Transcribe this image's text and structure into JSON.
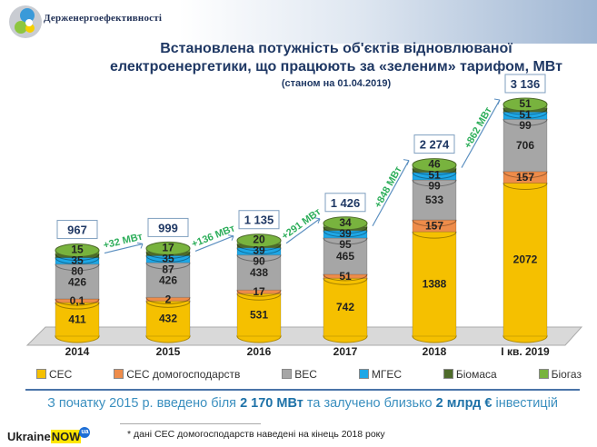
{
  "header": {
    "org": "Держенергоефективності"
  },
  "chart_data": {
    "type": "bar",
    "stacked": true,
    "title": "Встановлена потужність об'єктів відновлюваної електроенергетики, що працюють за «зеленим» тарифом, МВт",
    "subtitle": "(станом на 01.04.2019)",
    "categories": [
      "2014",
      "2015",
      "2016",
      "2017",
      "2018",
      "І кв. 2019"
    ],
    "series": [
      {
        "name": "СЕС",
        "color": "#f5c000",
        "values": [
          411,
          432,
          531,
          742,
          1388,
          2072
        ],
        "labels": [
          "411",
          "432",
          "531",
          "742",
          "1388",
          "2072"
        ]
      },
      {
        "name": "СЕС домогосподарств",
        "color": "#ee8c4a",
        "values": [
          0.1,
          2,
          17,
          51,
          157,
          157
        ],
        "labels": [
          "0,1",
          "2",
          "17",
          "51",
          "157",
          "157"
        ]
      },
      {
        "name": "ВЕС",
        "color": "#a6a6a6",
        "values": [
          426,
          426,
          438,
          465,
          533,
          706
        ],
        "labels": [
          "426",
          "426",
          "438",
          "465",
          "533",
          "706"
        ]
      },
      {
        "name": "МГЕС",
        "color": "#1ea7e6",
        "values": [
          80,
          87,
          90,
          95,
          99,
          99
        ],
        "labels": [
          "80",
          "87",
          "90",
          "95",
          "99",
          "99"
        ]
      },
      {
        "name": "Біомаса",
        "color": "#4e6b2a",
        "values": [
          35,
          35,
          39,
          39,
          51,
          51
        ],
        "labels": [
          "35",
          "35",
          "39",
          "39",
          "51",
          "51"
        ]
      },
      {
        "name": "Біогаз",
        "color": "#78b33e",
        "values": [
          15,
          17,
          20,
          34,
          46,
          51
        ],
        "labels": [
          "15",
          "17",
          "20",
          "34",
          "46",
          "51"
        ]
      }
    ],
    "totals": [
      "967",
      "999",
      "1 135",
      "1 426",
      "2 274",
      "3 136"
    ],
    "growth": [
      "+32 МВт",
      "+136 МВт",
      "+291 МВт",
      "+848 МВт",
      "+862 МВт"
    ],
    "legend_position": "bottom"
  },
  "summary": {
    "pre": "З початку 2015 р. введено  біля ",
    "mw": "2 170 МВт",
    "mid": " та залучено близько  ",
    "inv": "2 млрд €",
    "post": " інвестицій"
  },
  "brand": {
    "ukraine": "Ukraine",
    "now": "NOW",
    "ua": "ua"
  },
  "footnote": "* дані СЕС домогосподарств  наведені на кінець 2018 року"
}
